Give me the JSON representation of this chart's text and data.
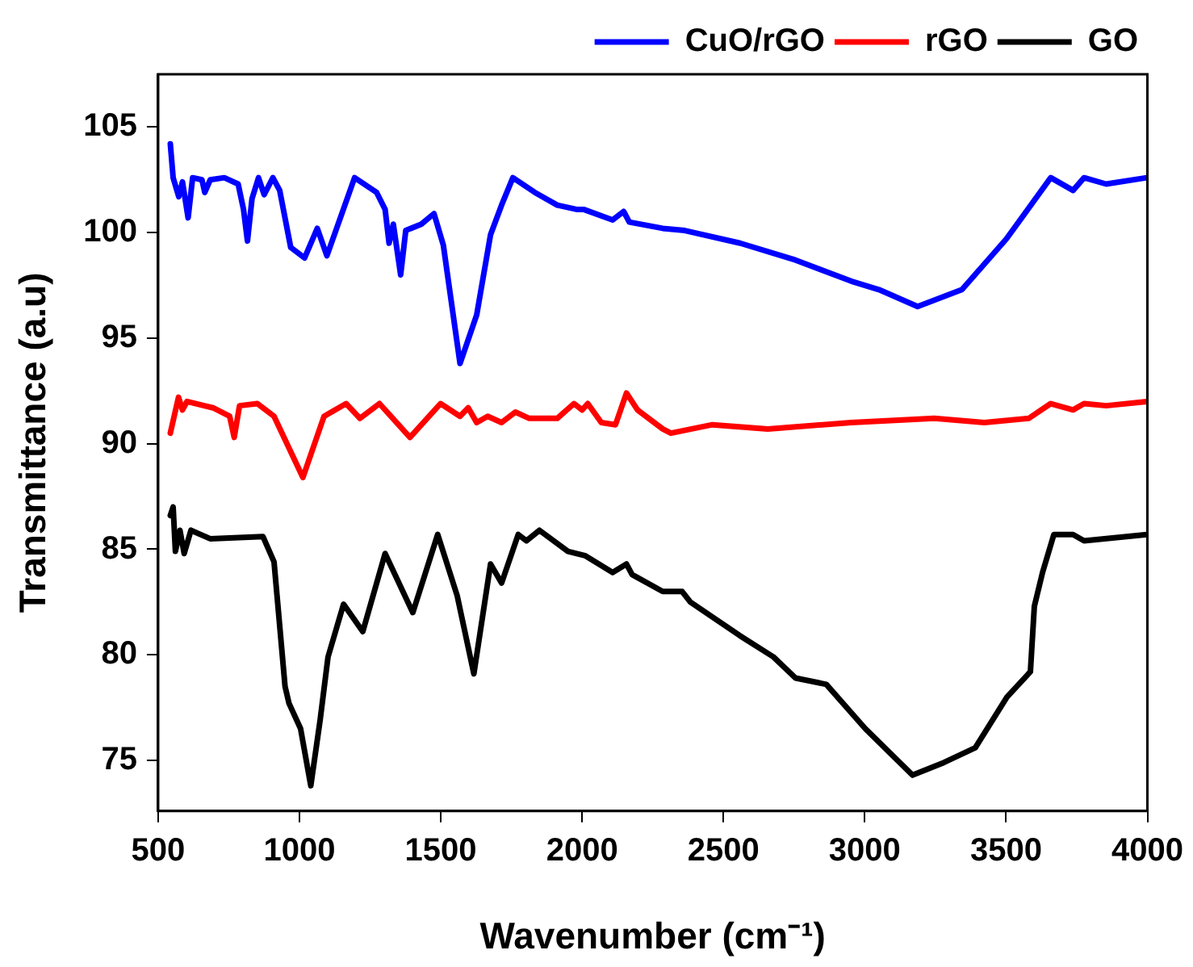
{
  "chart_data": {
    "type": "line",
    "xlabel": "Wavenumber (cm⁻¹)",
    "ylabel": "Transmittance (a.u)",
    "xlim": [
      500,
      4000
    ],
    "xticks": [
      500,
      1000,
      1500,
      2000,
      2500,
      3000,
      3500,
      4000
    ],
    "ylim": [
      72.6,
      107.5
    ],
    "yticks": [
      75,
      80,
      85,
      90,
      95,
      100,
      105
    ],
    "grid": false,
    "legend": "top right",
    "marker": "none",
    "line_style": "solid",
    "series": [
      {
        "name": "CuO/rGO",
        "color": "#0000ff",
        "x": [
          543,
          553,
          573,
          586,
          606,
          622,
          655,
          665,
          684,
          734,
          783,
          802,
          816,
          832,
          855,
          875,
          906,
          930,
          969,
          1018,
          1063,
          1097,
          1195,
          1273,
          1303,
          1317,
          1332,
          1358,
          1376,
          1431,
          1476,
          1509,
          1568,
          1627,
          1676,
          1715,
          1755,
          1833,
          1912,
          1980,
          2005,
          2108,
          2147,
          2167,
          2285,
          2363,
          2559,
          2755,
          2952,
          3050,
          3187,
          3344,
          3501,
          3658,
          3737,
          3776,
          3854,
          3998
        ],
        "values": [
          104.2,
          102.6,
          101.7,
          102.4,
          100.7,
          102.6,
          102.5,
          101.9,
          102.5,
          102.6,
          102.3,
          101.1,
          99.6,
          101.6,
          102.6,
          101.8,
          102.6,
          102.0,
          99.3,
          98.8,
          100.2,
          98.9,
          102.6,
          101.9,
          101.1,
          99.5,
          100.4,
          98.0,
          100.1,
          100.4,
          100.9,
          99.4,
          93.8,
          96.1,
          99.9,
          101.3,
          102.6,
          101.9,
          101.3,
          101.1,
          101.1,
          100.6,
          101.0,
          100.5,
          100.2,
          100.1,
          99.5,
          98.7,
          97.7,
          97.3,
          96.5,
          97.3,
          99.7,
          102.6,
          102.0,
          102.6,
          102.3,
          102.6
        ]
      },
      {
        "name": "rGO",
        "color": "#ff0000",
        "x": [
          543,
          572,
          586,
          602,
          694,
          753,
          769,
          788,
          851,
          910,
          1012,
          1087,
          1165,
          1214,
          1283,
          1391,
          1499,
          1568,
          1597,
          1627,
          1666,
          1715,
          1764,
          1813,
          1912,
          1971,
          2000,
          2020,
          2068,
          2118,
          2157,
          2196,
          2285,
          2314,
          2461,
          2657,
          2952,
          3246,
          3423,
          3580,
          3658,
          3737,
          3776,
          3854,
          3998
        ],
        "values": [
          90.5,
          92.2,
          91.6,
          92.0,
          91.7,
          91.3,
          90.3,
          91.8,
          91.9,
          91.3,
          88.4,
          91.3,
          91.9,
          91.2,
          91.9,
          90.3,
          91.9,
          91.3,
          91.7,
          91.0,
          91.3,
          91.0,
          91.5,
          91.2,
          91.2,
          91.9,
          91.6,
          91.9,
          91.0,
          90.9,
          92.4,
          91.6,
          90.7,
          90.5,
          90.9,
          90.7,
          91.0,
          91.2,
          91.0,
          91.2,
          91.9,
          91.6,
          91.9,
          91.8,
          92.0
        ]
      },
      {
        "name": "GO",
        "color": "#000000",
        "x": [
          543,
          553,
          561,
          577,
          592,
          616,
          684,
          871,
          910,
          949,
          963,
          1004,
          1040,
          1073,
          1101,
          1156,
          1224,
          1303,
          1401,
          1489,
          1558,
          1617,
          1676,
          1715,
          1774,
          1803,
          1849,
          1950,
          2010,
          2108,
          2157,
          2177,
          2285,
          2354,
          2383,
          2559,
          2677,
          2755,
          2864,
          3002,
          3169,
          3280,
          3391,
          3503,
          3586,
          3600,
          3629,
          3669,
          3737,
          3776,
          3998
        ],
        "values": [
          86.6,
          87.0,
          84.9,
          85.9,
          84.8,
          85.9,
          85.5,
          85.6,
          84.4,
          78.5,
          77.7,
          76.5,
          73.8,
          76.9,
          79.9,
          82.4,
          81.1,
          84.8,
          82.0,
          85.7,
          82.8,
          79.1,
          84.3,
          83.4,
          85.7,
          85.4,
          85.9,
          84.9,
          84.7,
          83.9,
          84.3,
          83.8,
          83.0,
          83.0,
          82.5,
          80.9,
          79.9,
          78.9,
          78.6,
          76.5,
          74.3,
          74.9,
          75.6,
          78.0,
          79.2,
          82.3,
          83.9,
          85.7,
          85.7,
          85.4,
          85.7
        ]
      }
    ]
  }
}
